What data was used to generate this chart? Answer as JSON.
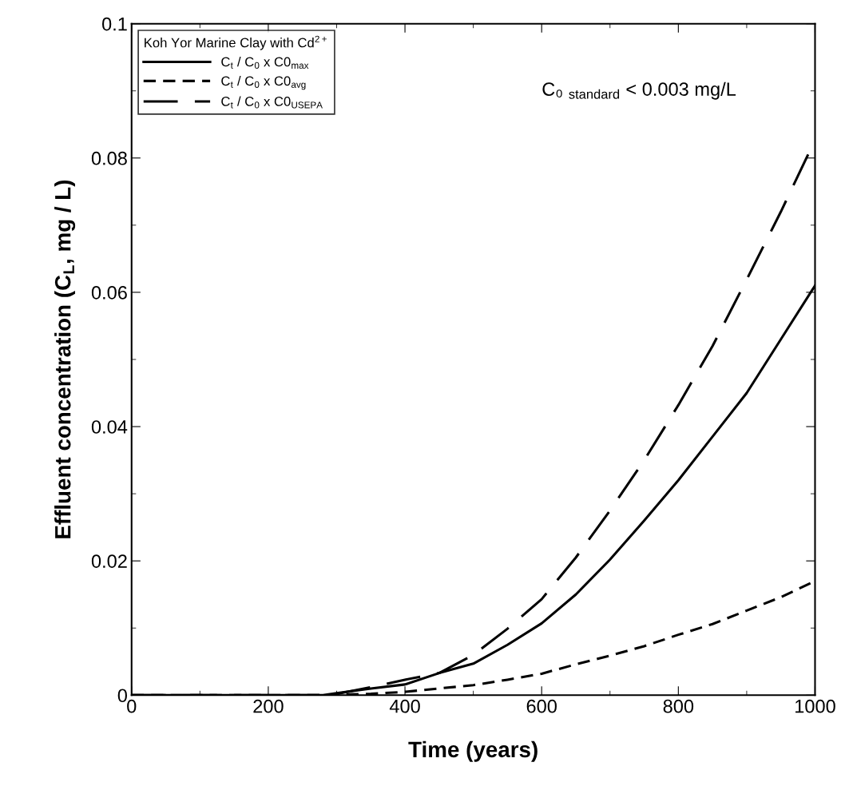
{
  "chart_data": {
    "type": "line",
    "xlabel": "Time (years)",
    "ylabel": "Effluent concentration (C$_{L}$, mg / L)",
    "legend_title": "Koh Yor Marine Clay with Cd$^{2+}$",
    "x": [
      0,
      100,
      200,
      280,
      300,
      350,
      400,
      450,
      500,
      550,
      600,
      650,
      700,
      750,
      800,
      850,
      900,
      950,
      1000
    ],
    "series": [
      {
        "name": "C$_{t}$ / C$_{0}$ x C0$_{max}$",
        "color": "#000000",
        "line_style": "solid",
        "values": [
          0,
          0,
          0,
          0,
          0.0003,
          0.001,
          0.0016,
          0.0033,
          0.0047,
          0.0075,
          0.0107,
          0.015,
          0.0202,
          0.026,
          0.032,
          0.0385,
          0.045,
          0.053,
          0.061
        ]
      },
      {
        "name": "C$_{t}$ / C$_{0}$ x C0$_{avg}$",
        "color": "#000000",
        "line_style": "dashed",
        "values": [
          0,
          0,
          0,
          0,
          0.0001,
          0.0002,
          0.0005,
          0.001,
          0.0015,
          0.0023,
          0.0032,
          0.0046,
          0.0059,
          0.0073,
          0.009,
          0.0106,
          0.0126,
          0.0146,
          0.017
        ]
      },
      {
        "name": "C$_{t}$ / C$_{0}$ x C0$_{USEPA}$",
        "color": "#000000",
        "line_style": "longdash",
        "values": [
          0,
          0,
          0,
          0,
          0.0002,
          0.0012,
          0.0023,
          0.0033,
          0.006,
          0.0099,
          0.0143,
          0.0205,
          0.0275,
          0.035,
          0.0432,
          0.052,
          0.0619,
          0.072,
          0.0827
        ]
      }
    ],
    "annotations": [
      {
        "text": "C₀ $_{standard}$ < 0.003 mg/L"
      }
    ],
    "xlim": [
      0,
      1000
    ],
    "xticks": [
      0,
      200,
      400,
      600,
      800,
      1000
    ],
    "ylim": [
      0,
      0.1
    ],
    "yticks": [
      0,
      0.02,
      0.04,
      0.06,
      0.08,
      0.1
    ],
    "grid": false,
    "legend": "top left",
    "marker": "none"
  }
}
